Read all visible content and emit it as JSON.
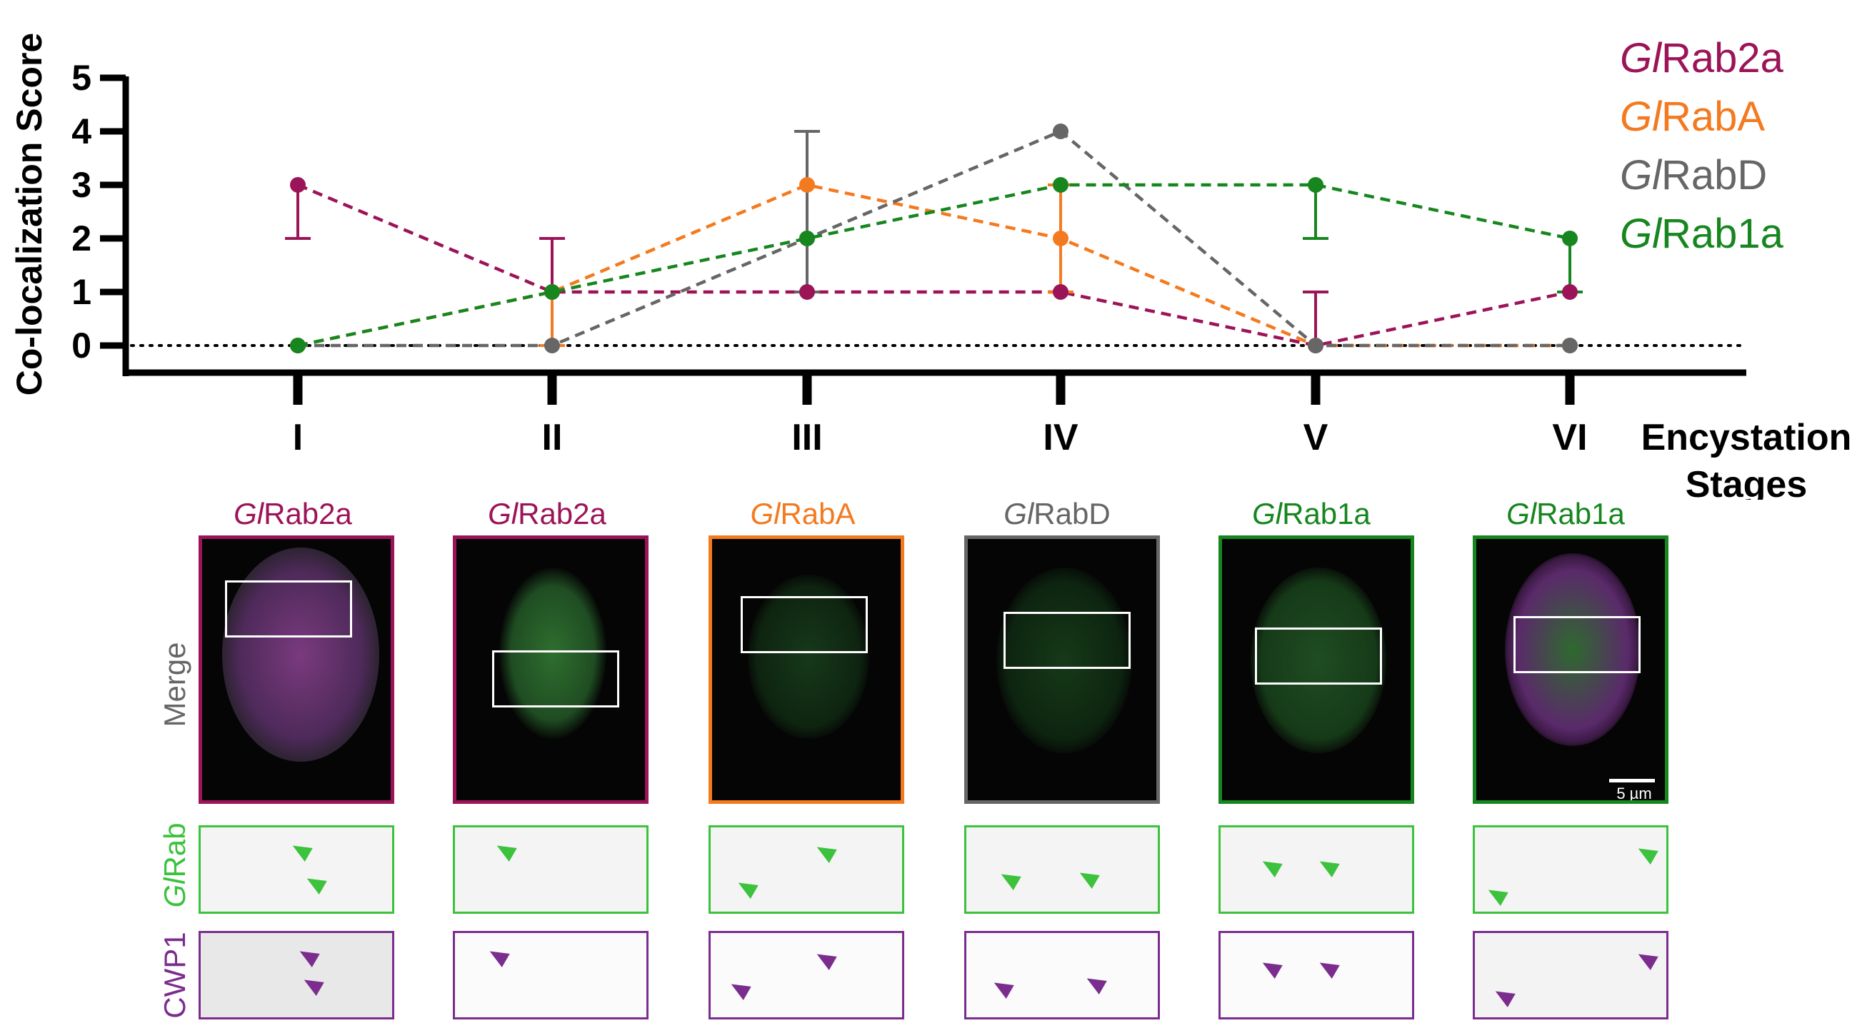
{
  "chart_data": {
    "type": "line",
    "ylabel": "Co-localization Score",
    "xlabel": "Encystation Stages",
    "categories": [
      "I",
      "II",
      "III",
      "IV",
      "V",
      "VI"
    ],
    "ylim": [
      0,
      5
    ],
    "yticks": [
      "0",
      "1",
      "2",
      "3",
      "4",
      "5"
    ],
    "reference_line": 0,
    "series": [
      {
        "name": "Rab2a",
        "prefix": "Gl",
        "color": "#9c1458",
        "values": [
          3,
          1,
          1,
          1,
          0,
          1
        ],
        "error_low": [
          2,
          null,
          null,
          null,
          null,
          null
        ],
        "error_high": [
          null,
          2,
          null,
          null,
          1,
          null
        ]
      },
      {
        "name": "RabA",
        "prefix": "Gl",
        "color": "#f47a1f",
        "values": [
          0,
          1,
          3,
          2,
          0,
          0
        ],
        "error_low": [
          null,
          0,
          null,
          1,
          null,
          null
        ],
        "error_high": [
          null,
          null,
          null,
          3,
          null,
          null
        ]
      },
      {
        "name": "RabD",
        "prefix": "Gl",
        "color": "#666666",
        "values": [
          0,
          0,
          2,
          4,
          0,
          0
        ],
        "error_low": [
          null,
          null,
          1,
          null,
          null,
          null
        ],
        "error_high": [
          null,
          null,
          4,
          null,
          null,
          null
        ]
      },
      {
        "name": "Rab1a",
        "prefix": "Gl",
        "color": "#17861f",
        "values": [
          0,
          1,
          2,
          3,
          3,
          2
        ],
        "error_low": [
          null,
          null,
          null,
          null,
          2,
          1
        ],
        "error_high": [
          null,
          null,
          null,
          null,
          null,
          null
        ]
      }
    ],
    "legend_position": "top-right",
    "grid": false
  },
  "figure": {
    "xlabel_line1": "Encystation",
    "xlabel_line2": "Stages",
    "row_labels": {
      "merge": "Merge",
      "rab_prefix": "Gl",
      "rab": "Rab",
      "cwp1": "CWP1"
    },
    "scalebar_label": "5 µm",
    "panels": [
      {
        "prefix": "Gl",
        "name": "Rab2a",
        "color": "#9c1458"
      },
      {
        "prefix": "Gl",
        "name": "Rab2a",
        "color": "#9c1458"
      },
      {
        "prefix": "Gl",
        "name": "RabA",
        "color": "#f47a1f"
      },
      {
        "prefix": "Gl",
        "name": "RabD",
        "color": "#666666"
      },
      {
        "prefix": "Gl",
        "name": "Rab1a",
        "color": "#17861f"
      },
      {
        "prefix": "Gl",
        "name": "Rab1a",
        "color": "#17861f"
      }
    ],
    "colors": {
      "green_row": "#3cc23c",
      "purple_row": "#7b2d8e"
    }
  }
}
